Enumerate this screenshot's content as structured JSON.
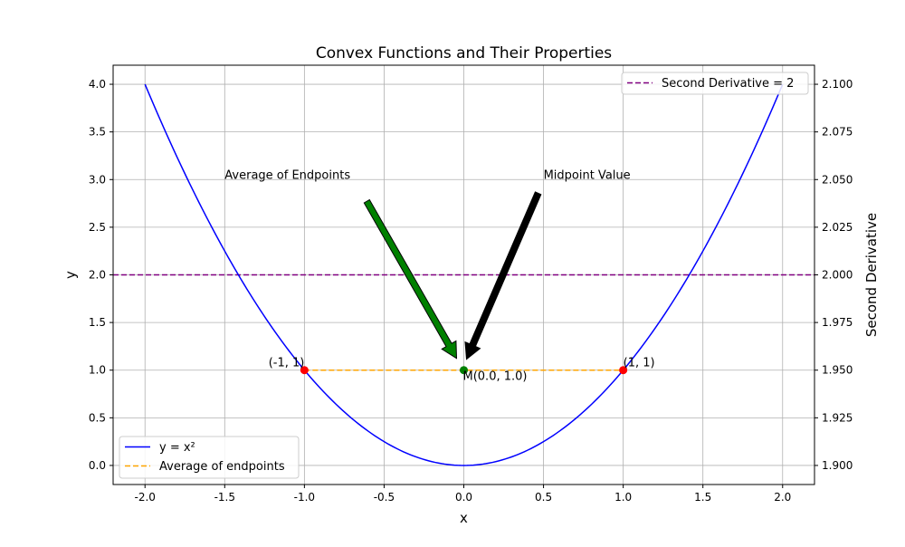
{
  "chart_data": {
    "type": "line",
    "title": "Convex Functions and Their Properties",
    "xlabel": "x",
    "ylabel": "y",
    "y2label": "Second Derivative",
    "xlim": [
      -2.2,
      2.2
    ],
    "ylim": [
      -0.2,
      4.2
    ],
    "y2lim": [
      1.89,
      2.11
    ],
    "grid": true,
    "x_ticks": [
      "-2.0",
      "-1.5",
      "-1.0",
      "-0.5",
      "0.0",
      "0.5",
      "1.0",
      "1.5",
      "2.0"
    ],
    "y_ticks": [
      "0.0",
      "0.5",
      "1.0",
      "1.5",
      "2.0",
      "2.5",
      "3.0",
      "3.5",
      "4.0"
    ],
    "y2_ticks": [
      "1.900",
      "1.925",
      "1.950",
      "1.975",
      "2.000",
      "2.025",
      "2.050",
      "2.075",
      "2.100"
    ],
    "series": [
      {
        "name": "y = x²",
        "function": "x^2",
        "x_range": [
          -2,
          2
        ],
        "color": "#0000ff",
        "style": "solid"
      },
      {
        "name": "Average of endpoints",
        "x": [
          -1,
          1
        ],
        "y": [
          1,
          1
        ],
        "color": "#ffa500",
        "style": "dashed"
      },
      {
        "name": "Second Derivative = 2",
        "axis": "right",
        "y": 2.0,
        "color": "#800080",
        "style": "dashed"
      }
    ],
    "points": [
      {
        "label": "(-1, 1)",
        "x": -1,
        "y": 1,
        "color": "#ff0000"
      },
      {
        "label": "(1, 1)",
        "x": 1,
        "y": 1,
        "color": "#ff0000"
      },
      {
        "label": "M(0.0, 1.0)",
        "x": 0,
        "y": 1,
        "color": "#008000"
      }
    ],
    "annotations": [
      {
        "text": "Average of Endpoints",
        "text_x": -1.5,
        "text_y": 3.0,
        "arrow_to": [
          0,
          1
        ],
        "color": "#008000"
      },
      {
        "text": "Midpoint Value",
        "text_x": 0.5,
        "text_y": 3.0,
        "arrow_to": [
          0,
          1
        ],
        "color": "#000000"
      }
    ],
    "legends": [
      {
        "location": "lower-left",
        "items": [
          "y = x²",
          "Average of endpoints"
        ]
      },
      {
        "location": "upper-right",
        "items": [
          "Second Derivative = 2"
        ]
      }
    ]
  }
}
